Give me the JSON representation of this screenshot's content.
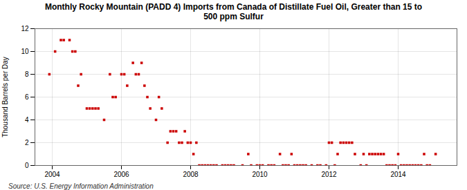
{
  "chart_data": {
    "type": "scatter",
    "title": "Monthly Rocky Mountain (PADD 4) Imports from Canada of Distillate Fuel Oil, Greater than 15 to\n500 ppm Sulfur",
    "ylabel": "Thousand Barrels per Day",
    "source": "Source: U.S. Energy Information Administration",
    "color": "#cc0000",
    "marker": "square",
    "grid": true,
    "xlim": [
      2003.5,
      2015.7
    ],
    "xticks": [
      2004,
      2006,
      2008,
      2010,
      2012,
      2014
    ],
    "ylim": [
      0,
      12
    ],
    "yticks": [
      0,
      2,
      4,
      6,
      8,
      10,
      12
    ],
    "x": [
      2003.917,
      2004.083,
      2004.25,
      2004.333,
      2004.5,
      2004.583,
      2004.667,
      2004.75,
      2004.833,
      2005.0,
      2005.083,
      2005.167,
      2005.25,
      2005.333,
      2005.5,
      2005.667,
      2005.75,
      2005.833,
      2006.0,
      2006.083,
      2006.167,
      2006.333,
      2006.417,
      2006.5,
      2006.583,
      2006.667,
      2006.75,
      2006.833,
      2007.0,
      2007.083,
      2007.167,
      2007.333,
      2007.417,
      2007.5,
      2007.583,
      2007.667,
      2007.75,
      2007.833,
      2007.917,
      2008.0,
      2008.083,
      2008.167,
      2008.25,
      2008.333,
      2008.417,
      2008.5,
      2008.583,
      2008.667,
      2008.75,
      2008.917,
      2009.0,
      2009.083,
      2009.167,
      2009.25,
      2009.5,
      2009.667,
      2009.75,
      2009.917,
      2010.0,
      2010.083,
      2010.25,
      2010.333,
      2010.417,
      2010.583,
      2010.667,
      2010.75,
      2010.833,
      2010.917,
      2011.0,
      2011.083,
      2011.167,
      2011.25,
      2011.333,
      2011.5,
      2011.667,
      2011.75,
      2011.917,
      2012.0,
      2012.083,
      2012.167,
      2012.25,
      2012.333,
      2012.417,
      2012.5,
      2012.583,
      2012.667,
      2012.75,
      2012.917,
      2013.0,
      2013.083,
      2013.167,
      2013.25,
      2013.333,
      2013.417,
      2013.5,
      2013.583,
      2013.667,
      2013.75,
      2013.833,
      2013.917,
      2014.0,
      2014.083,
      2014.167,
      2014.25,
      2014.333,
      2014.417,
      2014.5,
      2014.583,
      2014.667,
      2014.75,
      2014.833,
      2014.917,
      2015.083
    ],
    "values": [
      8.0,
      10.0,
      11.0,
      11.0,
      11.0,
      10.0,
      10.0,
      7.0,
      8.0,
      5.0,
      5.0,
      5.0,
      5.0,
      5.0,
      4.0,
      8.0,
      6.0,
      6.0,
      8.0,
      8.0,
      7.0,
      9.0,
      8.0,
      8.0,
      9.0,
      7.0,
      6.0,
      5.0,
      4.0,
      6.0,
      5.0,
      2.0,
      3.0,
      3.0,
      3.0,
      2.0,
      2.0,
      3.0,
      2.0,
      2.0,
      1.0,
      2.0,
      0.0,
      0.0,
      0.0,
      0.0,
      0.0,
      0.0,
      0.0,
      0.0,
      0.0,
      0.0,
      0.0,
      0.0,
      0.0,
      1.0,
      0.0,
      0.0,
      0.0,
      0.0,
      0.0,
      0.0,
      0.0,
      1.0,
      0.0,
      0.0,
      0.0,
      1.0,
      0.0,
      0.0,
      0.0,
      0.0,
      0.0,
      0.0,
      0.0,
      0.0,
      0.0,
      2.0,
      2.0,
      0.0,
      1.0,
      2.0,
      2.0,
      2.0,
      2.0,
      2.0,
      1.0,
      0.0,
      1.0,
      0.0,
      1.0,
      1.0,
      1.0,
      1.0,
      1.0,
      1.0,
      0.0,
      0.0,
      0.0,
      0.0,
      1.0,
      0.0,
      0.0,
      0.0,
      0.0,
      0.0,
      0.0,
      0.0,
      0.0,
      1.0,
      0.0,
      0.0,
      1.0
    ]
  }
}
